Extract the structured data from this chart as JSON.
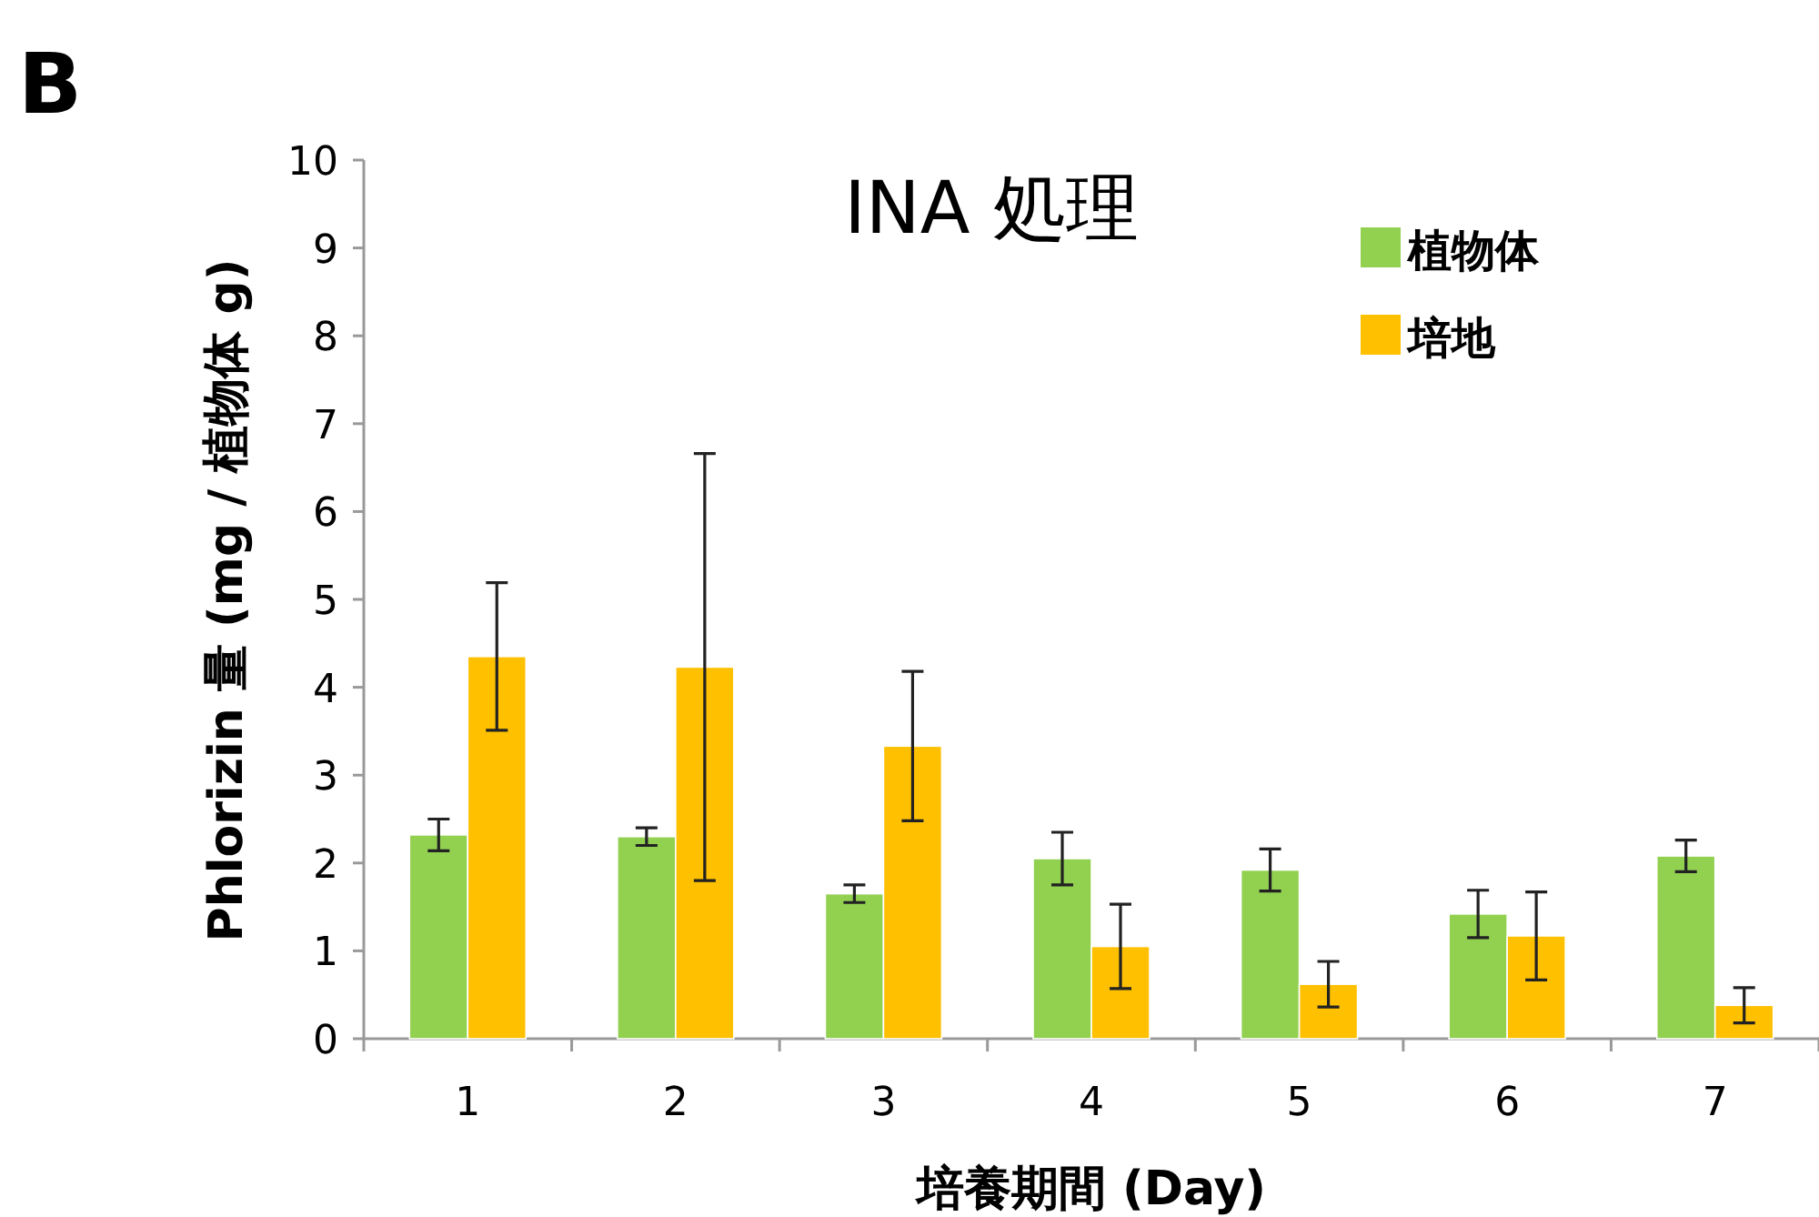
{
  "chart_data": {
    "type": "bar",
    "title": "INA 処理",
    "xlabel": "培養期間 (Day)",
    "ylabel": "Phlorizin 量 (mg / 植物体 g)",
    "annotations": [
      "B"
    ],
    "categories": [
      "1",
      "2",
      "3",
      "4",
      "5",
      "6",
      "7"
    ],
    "series": [
      {
        "name": "植物体",
        "color": "#92d050",
        "values": [
          2.32,
          2.3,
          1.65,
          2.05,
          1.92,
          1.42,
          2.08
        ],
        "errors": [
          0.18,
          0.1,
          0.1,
          0.3,
          0.24,
          0.27,
          0.18
        ]
      },
      {
        "name": "培地",
        "color": "#ffc000",
        "values": [
          4.35,
          4.23,
          3.33,
          1.05,
          0.62,
          1.17,
          0.38
        ],
        "errors": [
          0.84,
          2.43,
          0.85,
          0.48,
          0.26,
          0.5,
          0.2
        ]
      }
    ],
    "ylim": [
      0,
      10
    ],
    "yticks": [
      0,
      1,
      2,
      3,
      4,
      5,
      6,
      7,
      8,
      9,
      10
    ],
    "legend": "top right",
    "grid": false
  }
}
